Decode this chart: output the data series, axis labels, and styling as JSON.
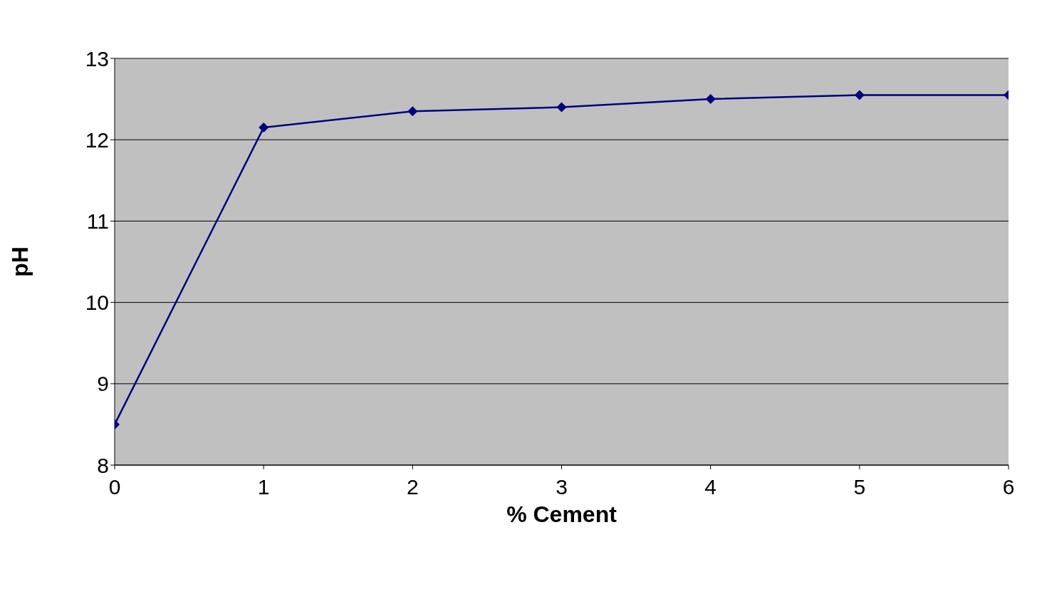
{
  "chart_data": {
    "type": "line",
    "xlabel": "% Cement",
    "ylabel": "pH",
    "x": [
      0,
      1,
      2,
      3,
      4,
      5,
      6
    ],
    "series": [
      {
        "color": "#000080",
        "values": [
          8.5,
          12.15,
          12.35,
          12.4,
          12.5,
          12.55,
          12.55
        ]
      }
    ],
    "xlim": [
      0,
      6
    ],
    "xticks": [
      0,
      1,
      2,
      3,
      4,
      5,
      6
    ],
    "ylim": [
      8,
      13
    ],
    "yticks": [
      8,
      9,
      10,
      11,
      12,
      13
    ],
    "grid": "y",
    "marker": "diamond",
    "line_style": "solid"
  }
}
